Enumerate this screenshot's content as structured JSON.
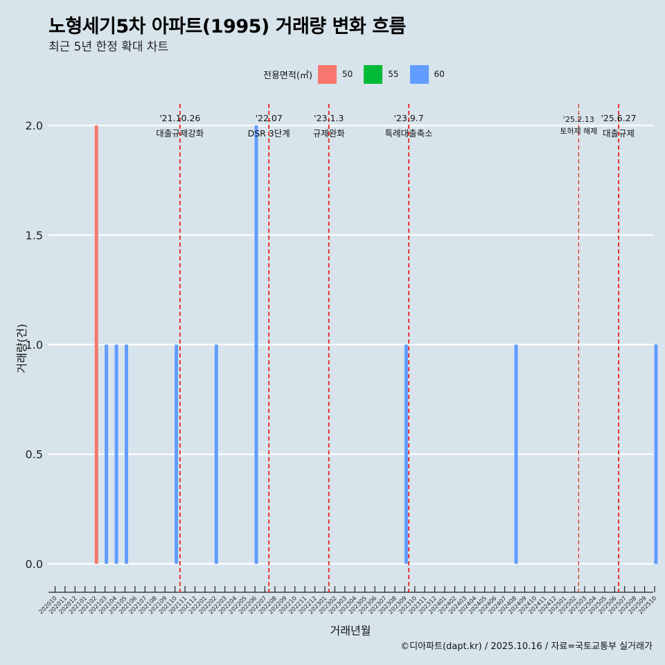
{
  "chart_data": {
    "type": "bar",
    "title": "노형세기5차 아파트(1995) 거래량 변화 흐름",
    "subtitle": "최근 5년 한정 확대 차트",
    "xlabel": "거래년월",
    "ylabel": "거래량(건)",
    "caption": "©디아파트(dapt.kr) / 2025.10.16 / 자료=국토교통부 실거래가",
    "legend": {
      "title": "전용면적(㎡)",
      "items": [
        {
          "label": "50",
          "color": "#f8766d"
        },
        {
          "label": "55",
          "color": "#00ba38"
        },
        {
          "label": "60",
          "color": "#619cff"
        }
      ]
    },
    "ylim": [
      -0.13,
      2.13
    ],
    "yticks": [
      0.0,
      0.5,
      1.0,
      1.5,
      2.0
    ],
    "ytick_labels": [
      "0.0",
      "0.5",
      "1.0",
      "1.5",
      "2.0"
    ],
    "categories": [
      "202010",
      "202011",
      "202012",
      "202101",
      "202102",
      "202103",
      "202104",
      "202105",
      "202106",
      "202107",
      "202108",
      "202109",
      "202110",
      "202111",
      "202112",
      "202201",
      "202202",
      "202203",
      "202204",
      "202205",
      "202206",
      "202207",
      "202208",
      "202209",
      "202210",
      "202211",
      "202212",
      "202301",
      "202302",
      "202303",
      "202304",
      "202305",
      "202306",
      "202307",
      "202308",
      "202309",
      "202310",
      "202311",
      "202312",
      "202401",
      "202402",
      "202403",
      "202404",
      "202405",
      "202406",
      "202407",
      "202408",
      "202409",
      "202410",
      "202411",
      "202412",
      "202501",
      "202502",
      "202503",
      "202504",
      "202505",
      "202506",
      "202507",
      "202508",
      "202509",
      "202510"
    ],
    "bars": [
      {
        "month": "202102",
        "area": "50",
        "value": 2
      },
      {
        "month": "202103",
        "area": "60",
        "value": 1
      },
      {
        "month": "202104",
        "area": "60",
        "value": 1
      },
      {
        "month": "202105",
        "area": "60",
        "value": 1
      },
      {
        "month": "202110",
        "area": "60",
        "value": 1
      },
      {
        "month": "202202",
        "area": "60",
        "value": 1
      },
      {
        "month": "202206",
        "area": "60",
        "value": 2
      },
      {
        "month": "202309",
        "area": "60",
        "value": 1
      },
      {
        "month": "202408",
        "area": "60",
        "value": 1
      },
      {
        "month": "202510",
        "area": "60",
        "value": 1
      }
    ],
    "events": [
      {
        "month_pos": 12.5,
        "date": "'21.10.26",
        "label": "대출규제강화",
        "small": false
      },
      {
        "month_pos": 21.4,
        "date": "'22.07",
        "label": "DSR 3단계",
        "small": false
      },
      {
        "month_pos": 27.4,
        "date": "'23.1.3",
        "label": "규제완화",
        "small": false
      },
      {
        "month_pos": 35.4,
        "date": "'23.9.7",
        "label": "특례대출축소",
        "small": false
      },
      {
        "month_pos": 52.4,
        "date": "'25.2.13",
        "label": "토허제 해제",
        "small": true
      },
      {
        "month_pos": 56.4,
        "date": "'25.6.27",
        "label": "대출규제",
        "small": false
      }
    ]
  }
}
